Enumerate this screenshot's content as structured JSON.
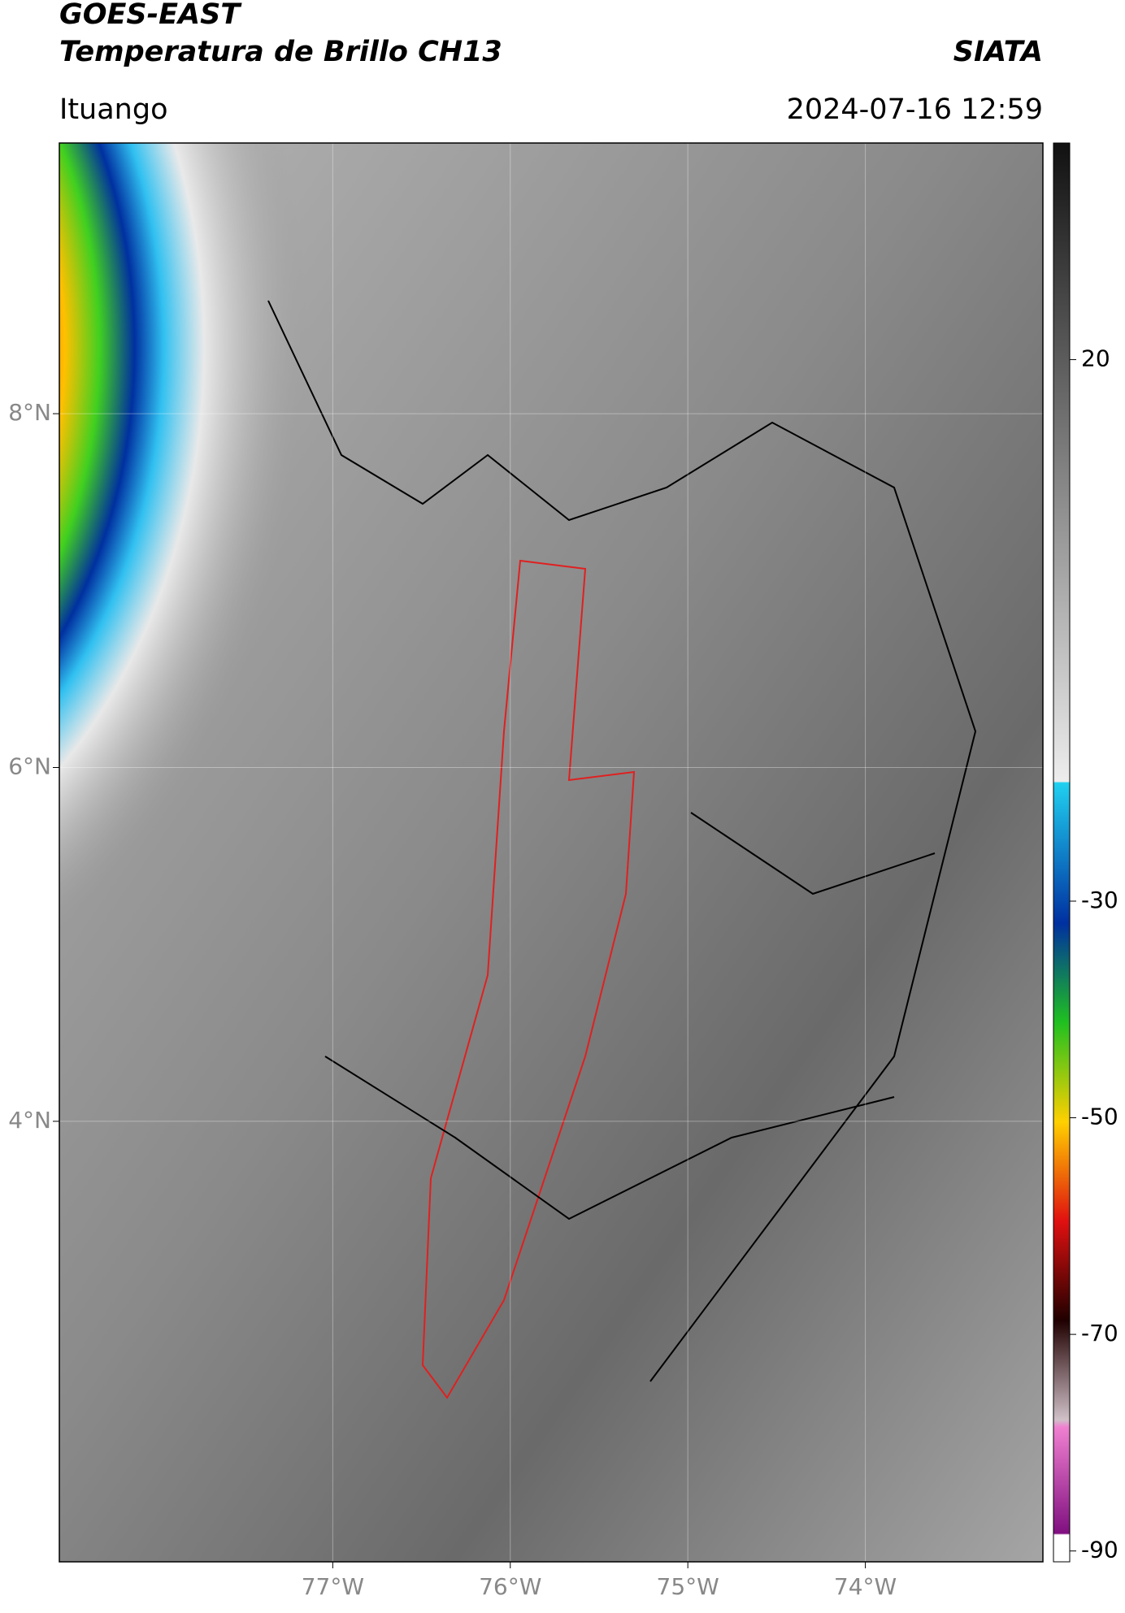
{
  "header": {
    "title": "GOES-EAST",
    "subtitle": "Temperatura de Brillo CH13",
    "source": "SIATA",
    "location": "Ituango",
    "datetime": "2024-07-16 12:59"
  },
  "map": {
    "xlim": [
      -78.54,
      -73.0
    ],
    "ylim": [
      1.51,
      9.53
    ],
    "xticks": [
      {
        "value": -77,
        "label": "77°W"
      },
      {
        "value": -76,
        "label": "76°W"
      },
      {
        "value": -75,
        "label": "75°W"
      },
      {
        "value": -74,
        "label": "74°W"
      }
    ],
    "yticks": [
      {
        "value": 8,
        "label": "8°N"
      },
      {
        "value": 6,
        "label": "6°N"
      },
      {
        "value": 4,
        "label": "4°N"
      }
    ]
  },
  "colorbar": {
    "lim": [
      -91,
      40
    ],
    "ticks": [
      20,
      -30,
      -50,
      -70,
      -90
    ]
  }
}
